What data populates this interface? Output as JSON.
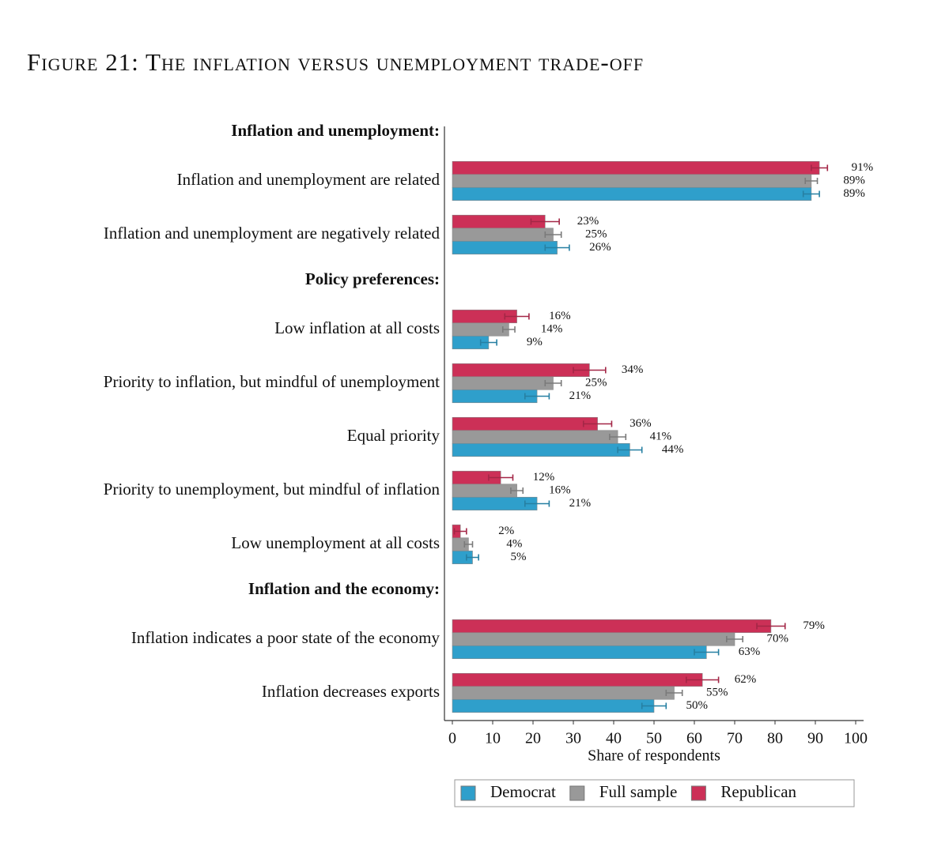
{
  "chart_data": {
    "type": "bar",
    "orientation": "horizontal",
    "title": "Figure 21: The inflation versus unemployment trade-off",
    "xlabel": "Share of respondents",
    "groups": [
      {
        "label": "Inflation and unemployment:",
        "categories": [
          "Inflation and unemployment are related",
          "Inflation and unemployment are negatively related"
        ]
      },
      {
        "label": "Policy preferences:",
        "categories": [
          "Low inflation at all costs",
          "Priority to inflation, but mindful of unemployment",
          "Equal priority",
          "Priority to unemployment, but mindful of inflation",
          "Low unemployment at all costs"
        ]
      },
      {
        "label": "Inflation and the economy:",
        "categories": [
          "Inflation indicates a poor state of the economy",
          "Inflation decreases exports"
        ]
      }
    ],
    "series": [
      {
        "name": "Democrat",
        "color": "#2f9fcb",
        "values": [
          89,
          26,
          9,
          21,
          44,
          21,
          5,
          63,
          50
        ],
        "value_labels": [
          "89%",
          "26%",
          "9%",
          "21%",
          "44%",
          "21%",
          "5%",
          "63%",
          "50%"
        ],
        "errors": [
          2,
          3,
          2,
          3,
          3,
          3,
          1.5,
          3,
          3
        ]
      },
      {
        "name": "Full sample",
        "color": "#999999",
        "values": [
          89,
          25,
          14,
          25,
          41,
          16,
          4,
          70,
          55
        ],
        "value_labels": [
          "89%",
          "25%",
          "14%",
          "25%",
          "41%",
          "16%",
          "4%",
          "70%",
          "55%"
        ],
        "errors": [
          1.5,
          2,
          1.5,
          2,
          2,
          1.5,
          1,
          2,
          2
        ]
      },
      {
        "name": "Republican",
        "color": "#cc3057",
        "values": [
          91,
          23,
          16,
          34,
          36,
          12,
          2,
          79,
          62
        ],
        "value_labels": [
          "91%",
          "23%",
          "16%",
          "34%",
          "36%",
          "12%",
          "2%",
          "79%",
          "62%"
        ],
        "errors": [
          2,
          3.5,
          3,
          4,
          3.5,
          3,
          1.5,
          3.5,
          4
        ]
      }
    ],
    "xlim": [
      0,
      100
    ],
    "xticks": [
      0,
      10,
      20,
      30,
      40,
      50,
      60,
      70,
      80,
      90,
      100
    ],
    "legend": "bottom"
  }
}
